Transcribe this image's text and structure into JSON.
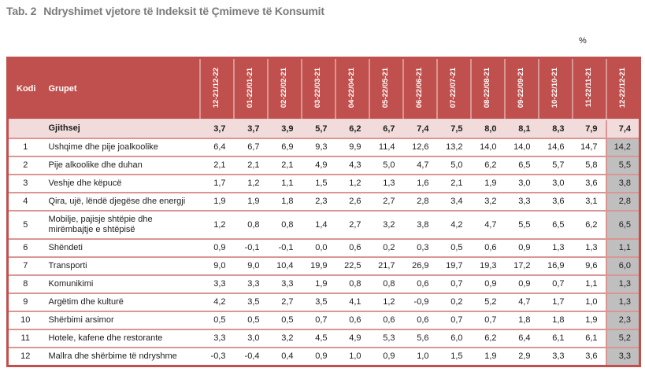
{
  "title": {
    "tab_label": "Tab. 2",
    "text": "Ndryshimet vjetore të Indeksit të Çmimeve të Konsumit"
  },
  "unit_label": "%",
  "table": {
    "kodi_header": "Kodi",
    "grupet_header": "Grupet",
    "period_headers": [
      "12-21/12-22",
      "01-22/01-21",
      "02-22/02-21",
      "03-22/03-21",
      "04-22/04-21",
      "05-22/05-21",
      "06-22/06-21",
      "07-22/07-21",
      "08-22/08-21",
      "09-22/09-21",
      "10-22/10-21",
      "11-22/11-21",
      "12-22/12-21"
    ],
    "total_row": {
      "label": "Gjithsej",
      "values": [
        "3,7",
        "3,7",
        "3,9",
        "5,7",
        "6,2",
        "6,7",
        "7,4",
        "7,5",
        "8,0",
        "8,1",
        "8,3",
        "7,9",
        "7,4"
      ]
    },
    "rows": [
      {
        "kodi": "1",
        "grupet": "Ushqime dhe pije joalkoolike",
        "values": [
          "6,4",
          "6,7",
          "6,9",
          "9,3",
          "9,9",
          "11,4",
          "12,6",
          "13,2",
          "14,0",
          "14,0",
          "14,6",
          "14,7",
          "14,2"
        ]
      },
      {
        "kodi": "2",
        "grupet": "Pije alkoolike dhe duhan",
        "values": [
          "2,1",
          "2,1",
          "2,1",
          "4,9",
          "4,3",
          "5,0",
          "4,7",
          "5,0",
          "6,2",
          "6,5",
          "5,7",
          "5,8",
          "5,5"
        ]
      },
      {
        "kodi": "3",
        "grupet": "Veshje dhe këpucë",
        "values": [
          "1,7",
          "1,2",
          "1,1",
          "1,5",
          "1,2",
          "1,3",
          "1,6",
          "2,1",
          "1,9",
          "3,0",
          "3,0",
          "3,6",
          "3,8"
        ]
      },
      {
        "kodi": "4",
        "grupet": "Qira, ujë, lëndë djegëse dhe energji",
        "values": [
          "1,9",
          "1,9",
          "1,8",
          "2,3",
          "2,6",
          "2,7",
          "2,8",
          "3,4",
          "3,2",
          "3,3",
          "3,6",
          "3,1",
          "2,8"
        ]
      },
      {
        "kodi": "5",
        "grupet": "Mobilje, pajisje shtëpie dhe mirëmbajtje e shtëpisë",
        "values": [
          "1,2",
          "0,8",
          "0,8",
          "1,4",
          "2,7",
          "3,2",
          "3,8",
          "4,2",
          "4,7",
          "5,5",
          "6,5",
          "6,2",
          "6,5"
        ]
      },
      {
        "kodi": "6",
        "grupet": "Shëndeti",
        "values": [
          "0,9",
          "-0,1",
          "-0,1",
          "0,0",
          "0,6",
          "0,2",
          "0,3",
          "0,5",
          "0,6",
          "0,9",
          "1,3",
          "1,3",
          "1,1"
        ]
      },
      {
        "kodi": "7",
        "grupet": "Transporti",
        "values": [
          "9,0",
          "9,0",
          "10,4",
          "19,9",
          "22,5",
          "21,7",
          "26,9",
          "19,7",
          "19,3",
          "17,2",
          "16,9",
          "9,6",
          "6,0"
        ]
      },
      {
        "kodi": "8",
        "grupet": "Komunikimi",
        "values": [
          "3,3",
          "3,3",
          "3,3",
          "1,9",
          "0,8",
          "0,8",
          "0,6",
          "0,7",
          "0,9",
          "0,9",
          "0,7",
          "1,1",
          "1,3"
        ]
      },
      {
        "kodi": "9",
        "grupet": "Argëtim dhe kulturë",
        "values": [
          "4,2",
          "3,5",
          "2,7",
          "3,5",
          "4,1",
          "1,2",
          "-0,9",
          "0,2",
          "5,2",
          "4,7",
          "1,7",
          "1,0",
          "1,3"
        ]
      },
      {
        "kodi": "10",
        "grupet": "Shërbimi arsimor",
        "values": [
          "0,5",
          "0,5",
          "0,5",
          "0,7",
          "0,6",
          "0,6",
          "0,6",
          "0,7",
          "0,7",
          "1,8",
          "1,8",
          "1,9",
          "2,3"
        ]
      },
      {
        "kodi": "11",
        "grupet": "Hotele, kafene dhe restorante",
        "values": [
          "3,3",
          "3,0",
          "3,2",
          "4,5",
          "4,9",
          "5,3",
          "5,6",
          "6,0",
          "6,2",
          "6,4",
          "6,1",
          "6,1",
          "5,2"
        ]
      },
      {
        "kodi": "12",
        "grupet": "Mallra dhe shërbime të ndryshme",
        "values": [
          "-0,3",
          "-0,4",
          "0,4",
          "0,9",
          "1,0",
          "0,9",
          "1,0",
          "1,5",
          "1,9",
          "2,9",
          "3,3",
          "3,6",
          "3,3"
        ]
      }
    ]
  },
  "colors": {
    "header_bg": "#C0504D",
    "total_row_bg": "#F2DCDB",
    "last_col_bg": "#BFBFBF",
    "grid_border": "#D99694",
    "title_text": "#7B7B7D",
    "header_text": "#FFFFFF"
  }
}
